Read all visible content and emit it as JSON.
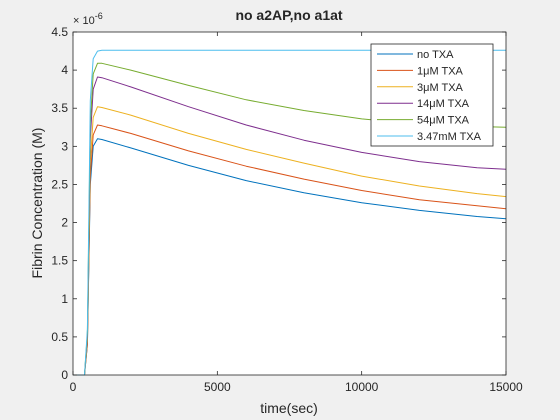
{
  "chart_data": {
    "type": "line",
    "title": "no a2AP,no a1at",
    "xlabel": "time(sec)",
    "ylabel": "Fibrin Concentration (M)",
    "y_multiplier_label": "× 10",
    "y_exponent_label": "-6",
    "xlim": [
      0,
      15000
    ],
    "ylim": [
      0,
      4.5
    ],
    "x_ticks": [
      0,
      5000,
      10000,
      15000
    ],
    "x_tick_labels": [
      "0",
      "5000",
      "10000",
      "15000"
    ],
    "y_ticks": [
      0,
      0.5,
      1,
      1.5,
      2,
      2.5,
      3,
      3.5,
      4,
      4.5
    ],
    "y_tick_labels": [
      "0",
      "0.5",
      "1",
      "1.5",
      "2",
      "2.5",
      "3",
      "3.5",
      "4",
      "4.5"
    ],
    "grid": false,
    "legend_position": "top-right",
    "series": [
      {
        "name": "no TXA",
        "color": "#0072BD",
        "x": [
          0,
          400,
          500,
          600,
          700,
          850,
          1000,
          2000,
          4000,
          6000,
          8000,
          10000,
          12000,
          14000,
          15000
        ],
        "y": [
          0,
          0,
          0.4,
          2.5,
          3.0,
          3.1,
          3.09,
          2.98,
          2.75,
          2.55,
          2.39,
          2.26,
          2.16,
          2.08,
          2.05
        ]
      },
      {
        "name": "1μM TXA",
        "color": "#D95319",
        "x": [
          0,
          400,
          500,
          600,
          700,
          850,
          1000,
          2000,
          4000,
          6000,
          8000,
          10000,
          12000,
          14000,
          15000
        ],
        "y": [
          0,
          0,
          0.4,
          2.6,
          3.15,
          3.28,
          3.27,
          3.17,
          2.94,
          2.74,
          2.57,
          2.42,
          2.3,
          2.22,
          2.18
        ]
      },
      {
        "name": "3μM TXA",
        "color": "#EDB120",
        "x": [
          0,
          400,
          500,
          600,
          700,
          850,
          1000,
          2000,
          4000,
          6000,
          8000,
          10000,
          12000,
          14000,
          15000
        ],
        "y": [
          0,
          0,
          0.45,
          2.8,
          3.38,
          3.52,
          3.51,
          3.41,
          3.17,
          2.96,
          2.78,
          2.61,
          2.48,
          2.38,
          2.34
        ]
      },
      {
        "name": "14μM TXA",
        "color": "#7E2F8E",
        "x": [
          0,
          400,
          500,
          600,
          700,
          850,
          1000,
          2000,
          4000,
          6000,
          8000,
          10000,
          12000,
          14000,
          15000
        ],
        "y": [
          0,
          0,
          0.5,
          3.1,
          3.75,
          3.91,
          3.9,
          3.78,
          3.52,
          3.28,
          3.08,
          2.92,
          2.8,
          2.72,
          2.7
        ]
      },
      {
        "name": "54μM TXA",
        "color": "#77AC30",
        "x": [
          0,
          400,
          500,
          600,
          700,
          850,
          1000,
          2000,
          4000,
          6000,
          8000,
          10000,
          12000,
          14000,
          15000
        ],
        "y": [
          0,
          0,
          0.55,
          3.3,
          3.95,
          4.09,
          4.09,
          4.0,
          3.8,
          3.61,
          3.47,
          3.36,
          3.29,
          3.26,
          3.25
        ]
      },
      {
        "name": "3.47mM TXA",
        "color": "#4DBEEE",
        "x": [
          0,
          400,
          500,
          600,
          700,
          850,
          1000,
          2000,
          4000,
          6000,
          8000,
          10000,
          12000,
          14000,
          15000
        ],
        "y": [
          0,
          0,
          0.6,
          3.6,
          4.15,
          4.25,
          4.26,
          4.26,
          4.26,
          4.26,
          4.26,
          4.26,
          4.26,
          4.26,
          4.26
        ]
      }
    ]
  }
}
